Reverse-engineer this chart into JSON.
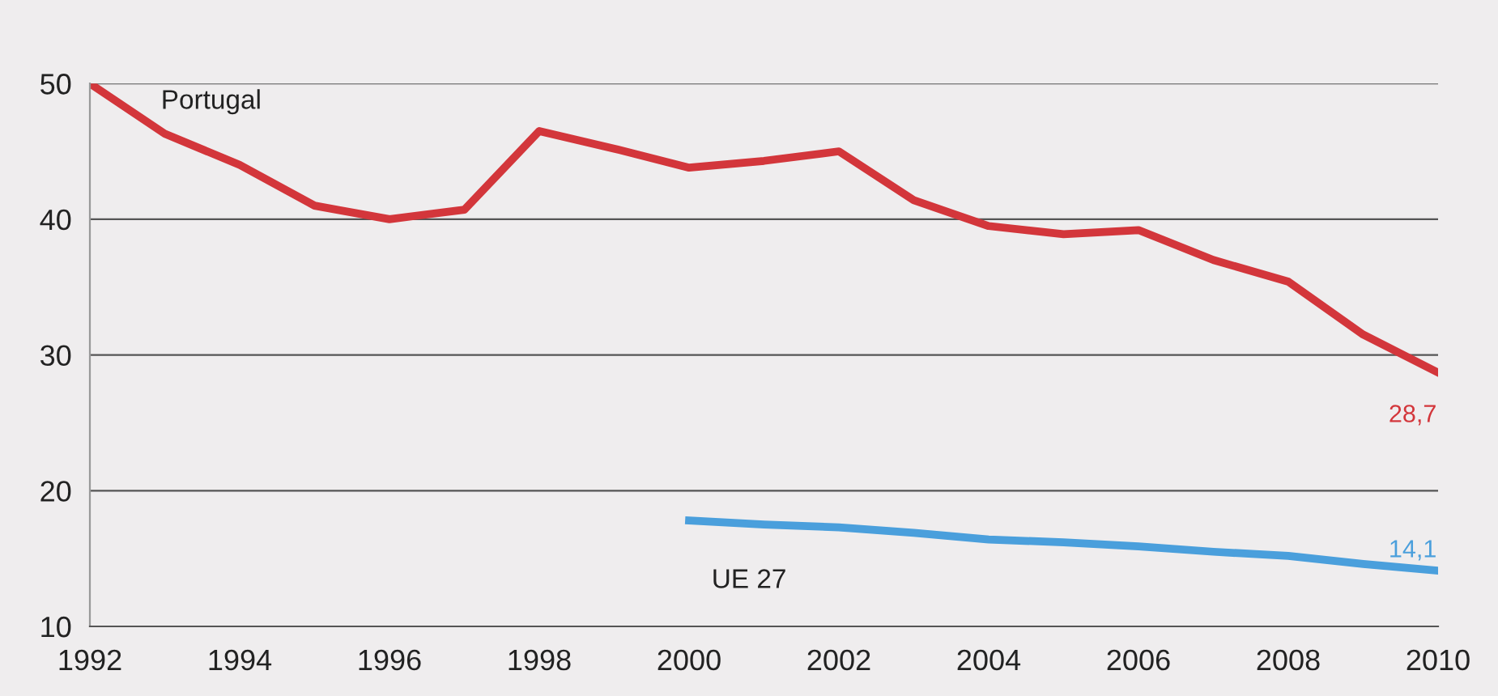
{
  "chart_data": {
    "type": "line",
    "x": [
      1992,
      1993,
      1994,
      1995,
      1996,
      1997,
      1998,
      1999,
      2000,
      2001,
      2002,
      2003,
      2004,
      2005,
      2006,
      2007,
      2008,
      2009,
      2010
    ],
    "series": [
      {
        "name": "Portugal",
        "color": "#d3363b",
        "values": [
          50,
          46.3,
          44,
          41,
          40,
          40.7,
          46.5,
          45.2,
          43.8,
          44.3,
          45,
          41.4,
          39.5,
          38.9,
          39.2,
          37,
          35.4,
          31.5,
          28.7
        ]
      },
      {
        "name": "UE 27",
        "color": "#4a9fdc",
        "x": [
          2000,
          2001,
          2002,
          2003,
          2004,
          2005,
          2006,
          2007,
          2008,
          2009,
          2010
        ],
        "values": [
          17.8,
          17.5,
          17.3,
          16.9,
          16.4,
          16.2,
          15.9,
          15.5,
          15.2,
          14.6,
          14.1
        ]
      }
    ],
    "annotations": [
      {
        "text": "28,7",
        "x": 2010,
        "y": 28.7
      },
      {
        "text": "14,1",
        "x": 2010,
        "y": 14.1
      }
    ],
    "xlim": [
      1992,
      2010
    ],
    "ylim": [
      10,
      50
    ],
    "xticks": [
      1992,
      1994,
      1996,
      1998,
      2000,
      2002,
      2004,
      2006,
      2008,
      2010
    ],
    "yticks": [
      10,
      20,
      30,
      40,
      50
    ],
    "grid": "y",
    "legend": false,
    "marker": "none",
    "line_style": "solid"
  }
}
